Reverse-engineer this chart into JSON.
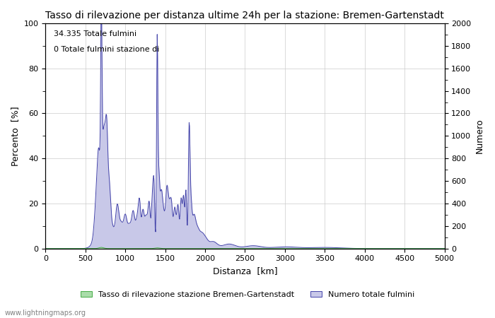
{
  "title": "Tasso di rilevazione per distanza ultime 24h per la stazione: Bremen-Gartenstadt",
  "xlabel": "Distanza  [km]",
  "ylabel_left": "Percento  [%]",
  "ylabel_right": "Numero",
  "xlim": [
    0,
    5000
  ],
  "ylim_left": [
    0,
    100
  ],
  "ylim_right": [
    0,
    2000
  ],
  "xticks": [
    0,
    500,
    1000,
    1500,
    2000,
    2500,
    3000,
    3500,
    4000,
    4500,
    5000
  ],
  "yticks_left": [
    0,
    20,
    40,
    60,
    80,
    100
  ],
  "yticks_right": [
    0,
    200,
    400,
    600,
    800,
    1000,
    1200,
    1400,
    1600,
    1800,
    2000
  ],
  "annotation_line1": "34.335 Totale fulmini",
  "annotation_line2": "0 Totale fulmini stazione di",
  "legend_label_green": "Tasso di rilevazione stazione Bremen-Gartenstadt",
  "legend_label_blue": "Numero totale fulmini",
  "color_blue_fill": "#c8c8e8",
  "color_blue_line": "#4444aa",
  "color_green_fill": "#aaddaa",
  "color_green_line": "#44aa44",
  "watermark": "www.lightningmaps.org",
  "bg_color": "#ffffff",
  "grid_color": "#cccccc"
}
